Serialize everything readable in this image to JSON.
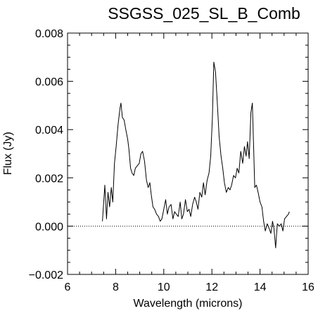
{
  "chart_data": {
    "type": "line",
    "title": "SSGSS_025_SL_B_Comb",
    "xlabel": "Wavelength (microns)",
    "ylabel": "Flux (Jy)",
    "xlim": [
      6,
      16
    ],
    "ylim": [
      -0.002,
      0.008
    ],
    "x_ticks": [
      {
        "value": 6,
        "label": "6"
      },
      {
        "value": 8,
        "label": "8"
      },
      {
        "value": 10,
        "label": "10"
      },
      {
        "value": 12,
        "label": "12"
      },
      {
        "value": 14,
        "label": "14"
      },
      {
        "value": 16,
        "label": "16"
      }
    ],
    "y_ticks": [
      {
        "value": -0.002,
        "label": "−0.002"
      },
      {
        "value": 0.0,
        "label": "0.000"
      },
      {
        "value": 0.002,
        "label": "0.002"
      },
      {
        "value": 0.004,
        "label": "0.004"
      },
      {
        "value": 0.006,
        "label": "0.006"
      },
      {
        "value": 0.008,
        "label": "0.008"
      }
    ],
    "reference_line": {
      "y": 0.0,
      "style": "dotted"
    },
    "series": [
      {
        "x": [
          7.45,
          7.55,
          7.62,
          7.68,
          7.75,
          7.82,
          7.88,
          7.95,
          8.02,
          8.1,
          8.18,
          8.22,
          8.28,
          8.35,
          8.42,
          8.5,
          8.55,
          8.62,
          8.68,
          8.75,
          8.82,
          8.9,
          8.98,
          9.05,
          9.12,
          9.2,
          9.28,
          9.35,
          9.42,
          9.48,
          9.55,
          9.62,
          9.7,
          9.78,
          9.85,
          9.92,
          10.0,
          10.08,
          10.15,
          10.22,
          10.3,
          10.38,
          10.45,
          10.52,
          10.6,
          10.68,
          10.75,
          10.82,
          10.9,
          10.98,
          11.05,
          11.12,
          11.2,
          11.28,
          11.35,
          11.42,
          11.5,
          11.58,
          11.65,
          11.72,
          11.8,
          11.88,
          11.95,
          12.02,
          12.08,
          12.15,
          12.22,
          12.3,
          12.38,
          12.45,
          12.52,
          12.6,
          12.68,
          12.75,
          12.82,
          12.9,
          12.98,
          13.05,
          13.12,
          13.2,
          13.28,
          13.35,
          13.42,
          13.48,
          13.55,
          13.62,
          13.68,
          13.72,
          13.78,
          13.85,
          13.92,
          14.0,
          14.08,
          14.15,
          14.22,
          14.3,
          14.38,
          14.45,
          14.52,
          14.58,
          14.65,
          14.72,
          14.8,
          14.88,
          14.95,
          15.02,
          15.1,
          15.18,
          15.22
        ],
        "y": [
          0.0002,
          0.0017,
          0.0003,
          0.0014,
          0.0008,
          0.0016,
          0.001,
          0.0026,
          0.0033,
          0.0042,
          0.0049,
          0.0051,
          0.0045,
          0.0044,
          0.004,
          0.0036,
          0.0032,
          0.0024,
          0.0022,
          0.0021,
          0.0024,
          0.0025,
          0.0026,
          0.003,
          0.0031,
          0.0027,
          0.0019,
          0.0016,
          0.0018,
          0.0013,
          0.0008,
          0.0007,
          0.0005,
          0.0004,
          0.0002,
          0.0003,
          0.0007,
          0.0011,
          0.0005,
          0.0008,
          0.0009,
          0.0003,
          0.0006,
          0.0005,
          0.0004,
          0.001,
          0.0003,
          0.0005,
          0.0011,
          0.0006,
          0.0007,
          0.0004,
          0.0009,
          0.0012,
          0.001,
          0.0007,
          0.0014,
          0.0012,
          0.0018,
          0.0013,
          0.0019,
          0.0022,
          0.0029,
          0.0045,
          0.0068,
          0.0064,
          0.0052,
          0.0037,
          0.0029,
          0.0024,
          0.0018,
          0.0014,
          0.0016,
          0.0015,
          0.0017,
          0.0021,
          0.002,
          0.0024,
          0.0022,
          0.0031,
          0.0026,
          0.0033,
          0.0029,
          0.0035,
          0.0028,
          0.0047,
          0.0051,
          0.0038,
          0.0016,
          0.0017,
          0.0014,
          0.001,
          0.0008,
          0.0002,
          -0.0002,
          0.0001,
          -0.0001,
          -0.0003,
          0.0002,
          -0.0001,
          -0.0009,
          0.0001,
          0.0,
          0.0001,
          -0.0002,
          0.0003,
          0.0004,
          0.0005,
          0.0006
        ]
      }
    ],
    "grid": false,
    "legend": "none"
  }
}
